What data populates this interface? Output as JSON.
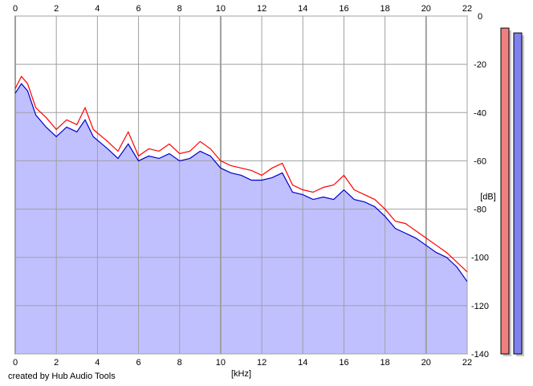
{
  "chart_data": {
    "type": "area",
    "title": "",
    "xlabel": "[kHz]",
    "ylabel": "[dB]",
    "xlim": [
      0,
      22
    ],
    "ylim": [
      -140,
      0
    ],
    "x_ticks": [
      "0",
      "2",
      "4",
      "6",
      "8",
      "10",
      "12",
      "14",
      "16",
      "18",
      "20",
      "22"
    ],
    "y_ticks": [
      "0",
      "-20",
      "-40",
      "-60",
      "-80",
      "-100",
      "-120",
      "-140"
    ],
    "grid": true,
    "series": [
      {
        "color": "#ff0000",
        "x": [
          0,
          0.3,
          0.6,
          1.0,
          1.5,
          2.0,
          2.5,
          3.0,
          3.4,
          3.8,
          4.5,
          5.0,
          5.5,
          6.0,
          6.5,
          7.0,
          7.5,
          8.0,
          8.5,
          9.0,
          9.5,
          10.0,
          10.5,
          11.0,
          11.5,
          12.0,
          12.5,
          13.0,
          13.5,
          14.0,
          14.5,
          15.0,
          15.5,
          16.0,
          16.5,
          17.0,
          17.5,
          18.0,
          18.5,
          19.0,
          19.5,
          20.0,
          20.5,
          21.0,
          21.5,
          22.0
        ],
        "y": [
          -30,
          -25,
          -28,
          -38,
          -42,
          -47,
          -43,
          -45,
          -38,
          -47,
          -52,
          -56,
          -48,
          -58,
          -55,
          -56,
          -53,
          -57,
          -56,
          -52,
          -55,
          -60,
          -62,
          -63,
          -64,
          -66,
          -63,
          -61,
          -70,
          -72,
          -73,
          -71,
          -70,
          -66,
          -72,
          -74,
          -76,
          -80,
          -85,
          -86,
          -89,
          -92,
          -95,
          -98,
          -102,
          -106
        ]
      },
      {
        "color": "#0000cc",
        "x": [
          0,
          0.3,
          0.6,
          1.0,
          1.5,
          2.0,
          2.5,
          3.0,
          3.4,
          3.8,
          4.5,
          5.0,
          5.5,
          6.0,
          6.5,
          7.0,
          7.5,
          8.0,
          8.5,
          9.0,
          9.5,
          10.0,
          10.5,
          11.0,
          11.5,
          12.0,
          12.5,
          13.0,
          13.5,
          14.0,
          14.5,
          15.0,
          15.5,
          16.0,
          16.5,
          17.0,
          17.5,
          18.0,
          18.5,
          19.0,
          19.5,
          20.0,
          20.5,
          21.0,
          21.5,
          22.0
        ],
        "y": [
          -32,
          -28,
          -31,
          -41,
          -46,
          -50,
          -46,
          -48,
          -43,
          -50,
          -55,
          -59,
          -53,
          -60,
          -58,
          -59,
          -57,
          -60,
          -59,
          -56,
          -58,
          -63,
          -65,
          -66,
          -68,
          -68,
          -67,
          -65,
          -73,
          -74,
          -76,
          -75,
          -76,
          -72,
          -76,
          -77,
          -79,
          -83,
          -88,
          -90,
          -92,
          -95,
          -98,
          -100,
          -104,
          -110
        ]
      }
    ],
    "fill_color": "#c0c0ff",
    "meters": [
      {
        "channel": "left",
        "color": "#f08080",
        "value_db": -5
      },
      {
        "channel": "right",
        "color": "#8080ee",
        "value_db": -7
      }
    ]
  },
  "footer": {
    "credit": "created by Hub Audio Tools"
  }
}
